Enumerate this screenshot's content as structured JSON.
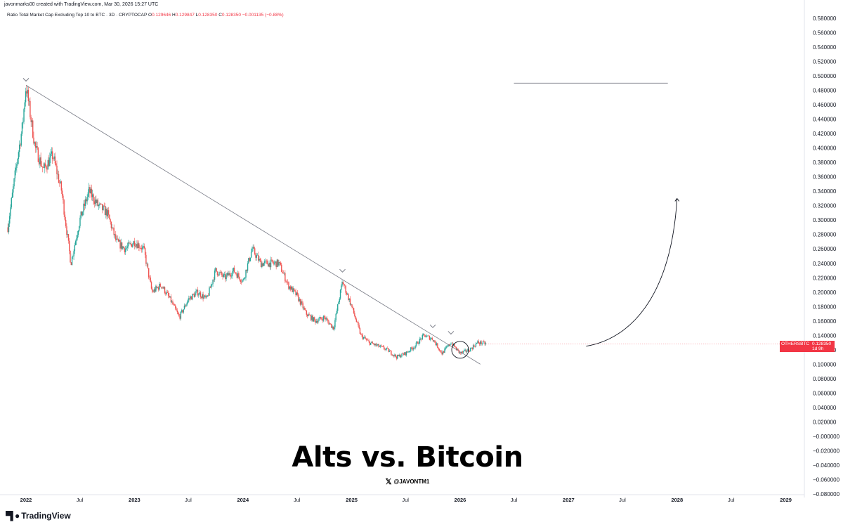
{
  "header": {
    "creator": "javonmarks00 created with TradingView.com, Mar 30, 2026 15:27 UTC",
    "symbol_description": "Ratio Total Market Cap Excluding Top 10 to BTC · 3D · CRYPTOCAP",
    "ohlc": {
      "o_label": "O",
      "o_value": "0.129646",
      "h_label": "H",
      "h_value": "0.129847",
      "l_label": "L",
      "l_value": "0.128350",
      "c_label": "C",
      "c_value": "0.128350",
      "change": "−0.001135 (−0.88%)"
    }
  },
  "price_tag": {
    "symbol": "OTHERSBTC",
    "price": "0.128350",
    "timer": "1d 9h"
  },
  "title": "Alts vs. Bitcoin",
  "handle": "@JAVONTM1",
  "brand": "TradingView",
  "colors": {
    "up": "#26a69a",
    "down": "#ef5350",
    "tag": "#f23645",
    "trendline": "#787b86"
  },
  "chart_data": {
    "type": "candlestick",
    "y_ticks": [
      "0.580000",
      "0.560000",
      "0.540000",
      "0.520000",
      "0.500000",
      "0.480000",
      "0.460000",
      "0.440000",
      "0.420000",
      "0.400000",
      "0.380000",
      "0.360000",
      "0.340000",
      "0.320000",
      "0.300000",
      "0.280000",
      "0.260000",
      "0.240000",
      "0.220000",
      "0.200000",
      "0.180000",
      "0.160000",
      "0.140000",
      "0.120000",
      "0.100000",
      "0.080000",
      "0.060000",
      "0.040000",
      "0.020000",
      "−0.000000",
      "−0.020000",
      "−0.040000",
      "−0.060000",
      "−0.080000"
    ],
    "y_tick_values": [
      0.58,
      0.56,
      0.54,
      0.52,
      0.5,
      0.48,
      0.46,
      0.44,
      0.42,
      0.4,
      0.38,
      0.36,
      0.34,
      0.32,
      0.3,
      0.28,
      0.26,
      0.24,
      0.22,
      0.2,
      0.18,
      0.16,
      0.14,
      0.12,
      0.1,
      0.08,
      0.06,
      0.04,
      0.02,
      0.0,
      -0.02,
      -0.04,
      -0.06,
      -0.08
    ],
    "x_ticks": [
      {
        "label": "2022",
        "date": "2022-01",
        "year": true
      },
      {
        "label": "Jul",
        "date": "2022-07",
        "year": false
      },
      {
        "label": "2023",
        "date": "2023-01",
        "year": true
      },
      {
        "label": "Jul",
        "date": "2023-07",
        "year": false
      },
      {
        "label": "2024",
        "date": "2024-01",
        "year": true
      },
      {
        "label": "Jul",
        "date": "2024-07",
        "year": false
      },
      {
        "label": "2025",
        "date": "2025-01",
        "year": true
      },
      {
        "label": "Jul",
        "date": "2025-07",
        "year": false
      },
      {
        "label": "2026",
        "date": "2026-01",
        "year": true
      },
      {
        "label": "Jul",
        "date": "2026-07",
        "year": false
      },
      {
        "label": "2027",
        "date": "2027-01",
        "year": true
      },
      {
        "label": "Jul",
        "date": "2027-07",
        "year": false
      },
      {
        "label": "2028",
        "date": "2028-01",
        "year": true
      },
      {
        "label": "Jul",
        "date": "2028-07",
        "year": false
      },
      {
        "label": "2029",
        "date": "2029-01",
        "year": true
      }
    ],
    "price_path": [
      [
        "2021-11",
        0.29
      ],
      [
        "2021-12",
        0.38
      ],
      [
        "2021-12-20",
        0.43
      ],
      [
        "2022-01",
        0.487
      ],
      [
        "2022-02",
        0.4
      ],
      [
        "2022-03",
        0.37
      ],
      [
        "2022-04",
        0.39
      ],
      [
        "2022-05",
        0.34
      ],
      [
        "2022-06",
        0.24
      ],
      [
        "2022-07",
        0.3
      ],
      [
        "2022-08",
        0.34
      ],
      [
        "2022-09",
        0.32
      ],
      [
        "2022-10",
        0.31
      ],
      [
        "2022-11",
        0.27
      ],
      [
        "2022-12",
        0.26
      ],
      [
        "2023-01",
        0.27
      ],
      [
        "2023-02",
        0.26
      ],
      [
        "2023-03",
        0.2
      ],
      [
        "2023-04",
        0.21
      ],
      [
        "2023-05",
        0.19
      ],
      [
        "2023-06",
        0.165
      ],
      [
        "2023-07",
        0.19
      ],
      [
        "2023-08",
        0.2
      ],
      [
        "2023-09",
        0.19
      ],
      [
        "2023-10",
        0.23
      ],
      [
        "2023-11",
        0.22
      ],
      [
        "2023-12",
        0.23
      ],
      [
        "2024-01",
        0.215
      ],
      [
        "2024-02",
        0.26
      ],
      [
        "2024-03",
        0.24
      ],
      [
        "2024-04",
        0.24
      ],
      [
        "2024-05",
        0.24
      ],
      [
        "2024-06",
        0.21
      ],
      [
        "2024-07",
        0.195
      ],
      [
        "2024-08",
        0.17
      ],
      [
        "2024-09",
        0.16
      ],
      [
        "2024-10",
        0.165
      ],
      [
        "2024-11",
        0.15
      ],
      [
        "2024-12",
        0.215
      ],
      [
        "2025-01",
        0.18
      ],
      [
        "2025-02",
        0.14
      ],
      [
        "2025-03",
        0.13
      ],
      [
        "2025-04",
        0.125
      ],
      [
        "2025-05",
        0.12
      ],
      [
        "2025-06",
        0.11
      ],
      [
        "2025-07",
        0.115
      ],
      [
        "2025-08",
        0.125
      ],
      [
        "2025-09",
        0.14
      ],
      [
        "2025-10",
        0.135
      ],
      [
        "2025-11",
        0.115
      ],
      [
        "2025-12",
        0.13
      ],
      [
        "2026-01",
        0.115
      ],
      [
        "2026-02",
        0.12
      ],
      [
        "2026-03",
        0.13
      ],
      [
        "2026-03-30",
        0.12835
      ]
    ],
    "trendline": {
      "start": [
        "2022-01",
        0.487
      ],
      "end": [
        "2026-03-10",
        0.1
      ]
    },
    "resistance_line": {
      "start": [
        "2026-07",
        0.49
      ],
      "end": [
        "2027-12",
        0.49
      ]
    },
    "projection_curve": [
      [
        "2027-03",
        0.125
      ],
      [
        "2027-10",
        0.17
      ],
      [
        "2028-01",
        0.33
      ]
    ],
    "peak_markers": [
      [
        "2022-01",
        0.487
      ],
      [
        "2024-12",
        0.222
      ],
      [
        "2025-10",
        0.145
      ],
      [
        "2025-12",
        0.136
      ]
    ],
    "breakout_circle": [
      "2026-01",
      0.12
    ],
    "last_price": 0.12835
  }
}
